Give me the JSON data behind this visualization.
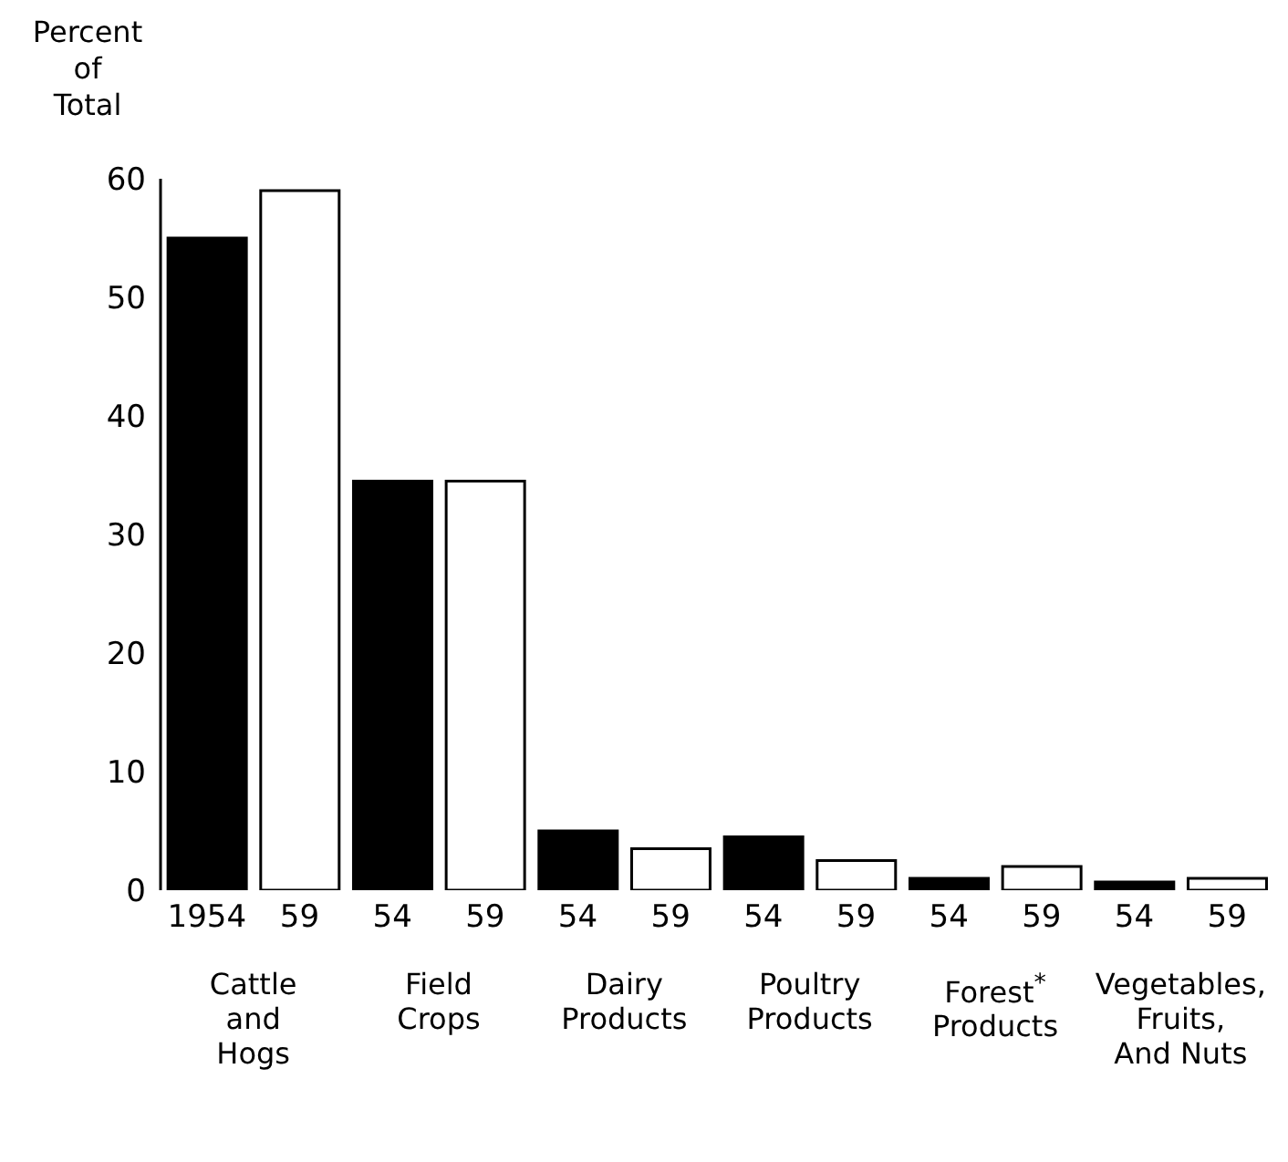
{
  "chart_data": {
    "type": "bar",
    "ylabel": "Percent\nof\nTotal",
    "categories": [
      "1954",
      "59",
      "54",
      "59",
      "54",
      "59",
      "54",
      "59",
      "54",
      "59",
      "54",
      "59"
    ],
    "values": [
      55,
      59,
      34.5,
      34.5,
      5,
      3.5,
      4.5,
      2.5,
      1,
      2,
      0.7,
      1
    ],
    "colors": [
      "#000000",
      "#ffffff",
      "#000000",
      "#ffffff",
      "#000000",
      "#ffffff",
      "#000000",
      "#ffffff",
      "#000000",
      "#ffffff",
      "#000000",
      "#ffffff"
    ],
    "ylim": [
      0,
      60
    ],
    "yticks": [
      0,
      10,
      20,
      30,
      40,
      50,
      60
    ],
    "grid": false,
    "annotations": [
      "Cattle\nand\nHogs",
      "Field\nCrops",
      "Dairy\nProducts",
      "Poultry\nProducts",
      "Forest$^{*}$\nProducts",
      "Vegetables,\nFruits,\nAnd Nuts"
    ]
  }
}
